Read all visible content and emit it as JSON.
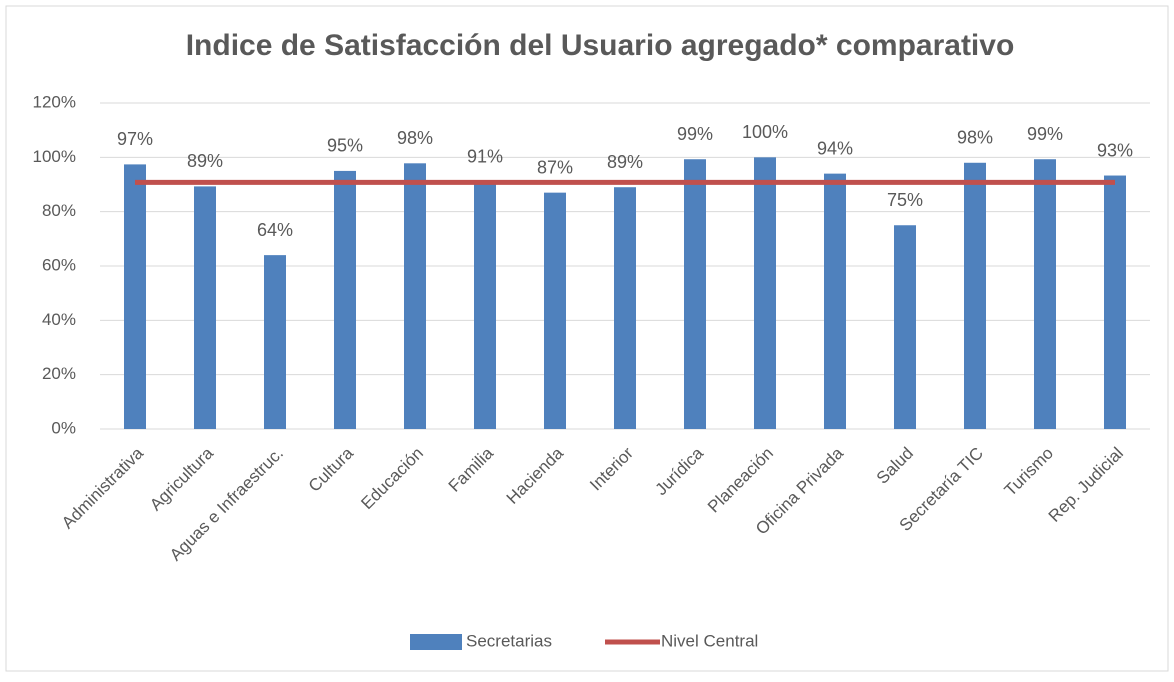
{
  "chart_data": {
    "type": "bar",
    "title": "Indice de Satisfacción del Usuario agregado* comparativo",
    "categories": [
      "Administrativa",
      "Agricultura",
      "Aguas e Infraestruc.",
      "Cultura",
      "Educación",
      "Familia",
      "Hacienda",
      "Interior",
      "Jurídica",
      "Planeación",
      "Oficina Privada",
      "Salud",
      "Secretaría TIC",
      "Turismo",
      "Rep. Judicial"
    ],
    "series": [
      {
        "name": "Secretarias",
        "type": "bar",
        "color": "#4f81bd",
        "values": [
          97.4,
          89.3,
          64,
          95,
          97.8,
          91,
          87,
          89,
          99.3,
          100,
          94,
          75,
          98,
          99.3,
          93.3
        ],
        "value_labels": [
          "97%",
          "89%",
          "64%",
          "95%",
          "98%",
          "91%",
          "87%",
          "89%",
          "99%",
          "100%",
          "94%",
          "75%",
          "98%",
          "99%",
          "93%"
        ]
      },
      {
        "name": "Nivel Central",
        "type": "line",
        "color": "#c0504d",
        "values": [
          90.8,
          90.8,
          90.8,
          90.8,
          90.8,
          90.8,
          90.8,
          90.8,
          90.8,
          90.8,
          90.8,
          90.8,
          90.8,
          90.8,
          90.8
        ]
      }
    ],
    "ylim": [
      0,
      120
    ],
    "yticks": [
      {
        "value": 0,
        "label": "0%"
      },
      {
        "value": 20,
        "label": "20%"
      },
      {
        "value": 40,
        "label": "40%"
      },
      {
        "value": 60,
        "label": "60%"
      },
      {
        "value": 80,
        "label": "80%"
      },
      {
        "value": 100,
        "label": "100%"
      },
      {
        "value": 120,
        "label": "120%"
      }
    ],
    "grid": true,
    "legend": "bottom"
  }
}
